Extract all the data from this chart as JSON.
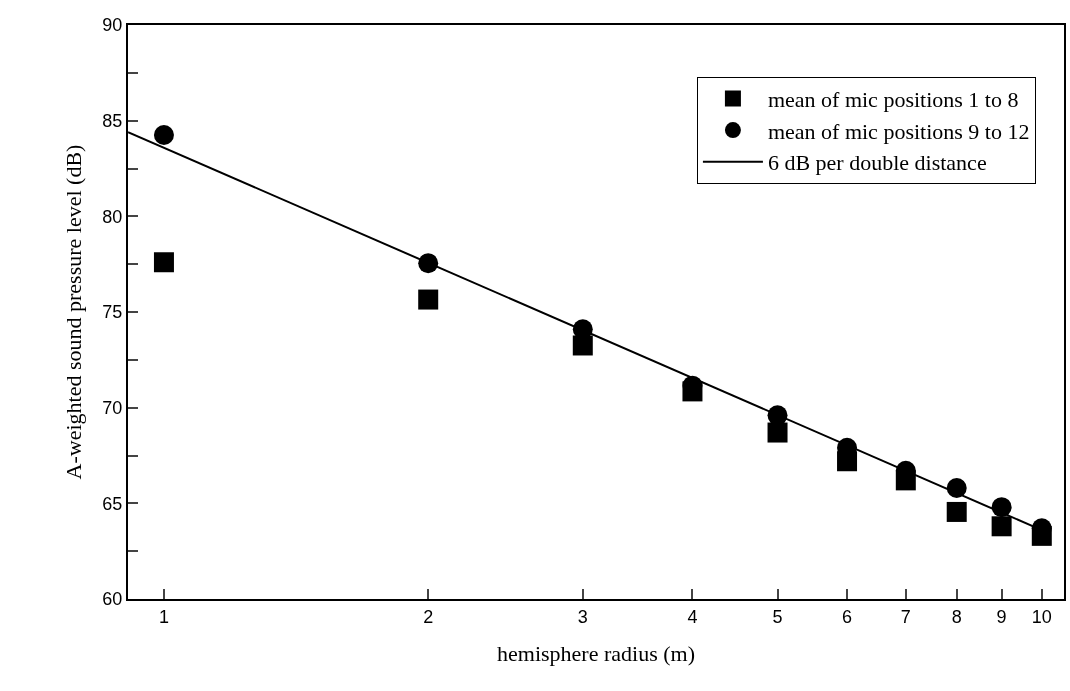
{
  "chart_data": {
    "type": "scatter",
    "xlabel": "hemisphere radius (m)",
    "ylabel": "A-weighted sound pressure level (dB)",
    "x": [
      1,
      2,
      3,
      4,
      5,
      6,
      7,
      8,
      9,
      10
    ],
    "series": [
      {
        "name": "mean of mic positions 1 to 8",
        "color": "#000000",
        "marker": "square",
        "values": [
          77.6,
          75.65,
          73.25,
          70.85,
          68.7,
          67.2,
          66.2,
          64.55,
          63.8,
          63.3
        ]
      },
      {
        "name": "mean of mic positions 9 to 12",
        "color": "#000000",
        "marker": "circle",
        "values": [
          84.25,
          77.55,
          74.1,
          71.15,
          69.6,
          67.9,
          66.7,
          65.8,
          64.8,
          63.7
        ]
      },
      {
        "name": "6 dB per double distance",
        "color": "#000000",
        "type": "line",
        "marker": "none",
        "line_style": "solid",
        "x": [
          0.91,
          10
        ],
        "values": [
          84.4,
          63.6
        ]
      }
    ],
    "log": "x",
    "xlim": [
      0.91,
      10.6
    ],
    "xticks": [
      1,
      2,
      3,
      4,
      5,
      6,
      7,
      8,
      9,
      10
    ],
    "ylim": [
      60,
      90
    ],
    "yticks": [
      60,
      {
        "value": 62.5,
        "label": null
      },
      65,
      {
        "value": 67.5,
        "label": null
      },
      70,
      {
        "value": 72.5,
        "label": null
      },
      75,
      {
        "value": 77.5,
        "label": null
      },
      80,
      {
        "value": 82.5,
        "label": null
      },
      85,
      {
        "value": 87.5,
        "label": null
      },
      90
    ],
    "legend": "top right"
  }
}
